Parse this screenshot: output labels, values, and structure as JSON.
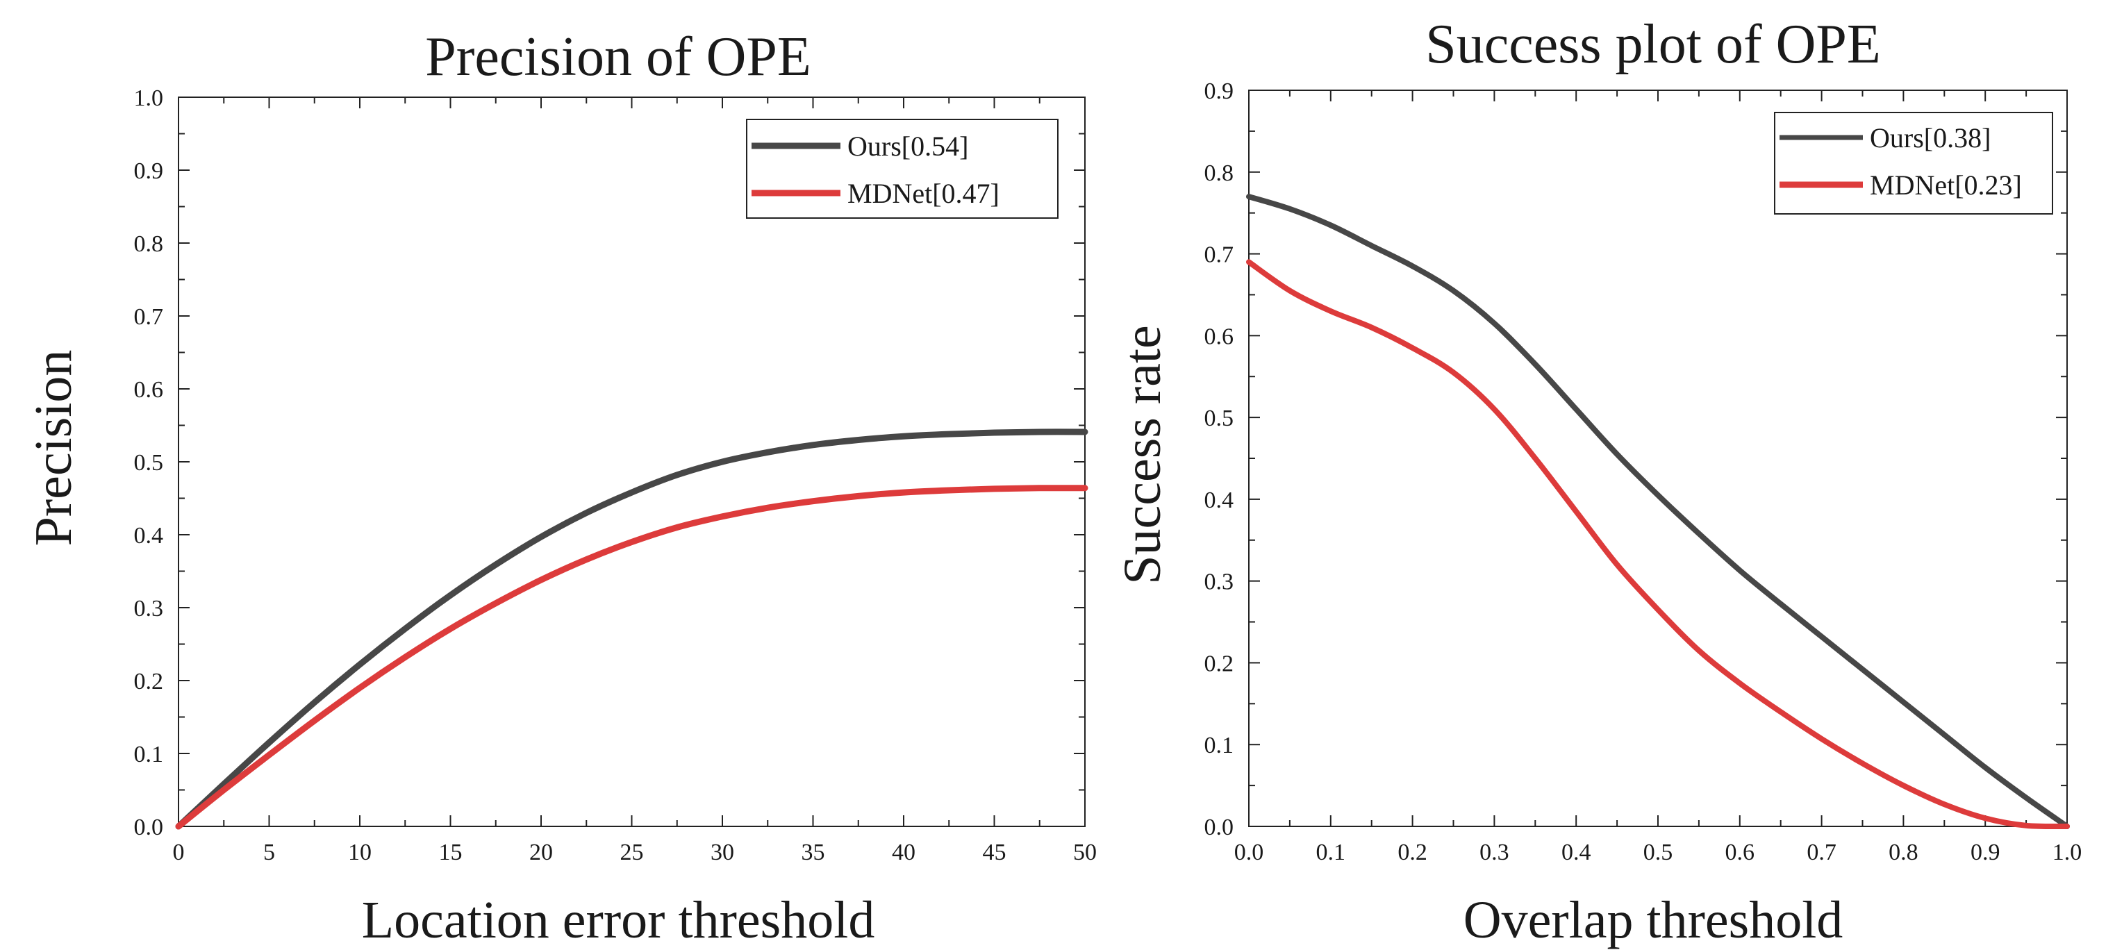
{
  "chart_data": [
    {
      "type": "line",
      "title": "Precision of OPE",
      "xlabel": "Location error threshold",
      "ylabel": "Precision",
      "xlim": [
        0,
        50
      ],
      "ylim": [
        0,
        1.0
      ],
      "xticks": [
        "0",
        "5",
        "10",
        "15",
        "20",
        "25",
        "30",
        "35",
        "40",
        "45",
        "50"
      ],
      "yticks": [
        "0.0",
        "0.1",
        "0.2",
        "0.3",
        "0.4",
        "0.5",
        "0.6",
        "0.7",
        "0.8",
        "0.9",
        "1.0"
      ],
      "legend_position": "top-right",
      "series": [
        {
          "name": "Ours[0.54]",
          "color": "#474747",
          "x": [
            0,
            2.5,
            5,
            7.5,
            10,
            12.5,
            15,
            17.5,
            20,
            22.5,
            25,
            27.5,
            30,
            32.5,
            35,
            37.5,
            40,
            42.5,
            45,
            47.5,
            50
          ],
          "y": [
            0.0,
            0.058,
            0.115,
            0.17,
            0.222,
            0.271,
            0.317,
            0.359,
            0.397,
            0.43,
            0.458,
            0.482,
            0.5,
            0.513,
            0.523,
            0.53,
            0.535,
            0.538,
            0.54,
            0.541,
            0.541
          ]
        },
        {
          "name": "MDNet[0.47]",
          "color": "#dd3b3b",
          "x": [
            0,
            2.5,
            5,
            7.5,
            10,
            12.5,
            15,
            17.5,
            20,
            22.5,
            25,
            27.5,
            30,
            32.5,
            35,
            37.5,
            40,
            42.5,
            45,
            47.5,
            50
          ],
          "y": [
            0.0,
            0.05,
            0.098,
            0.145,
            0.19,
            0.232,
            0.271,
            0.306,
            0.338,
            0.366,
            0.39,
            0.41,
            0.425,
            0.437,
            0.446,
            0.453,
            0.458,
            0.461,
            0.463,
            0.464,
            0.464
          ]
        }
      ]
    },
    {
      "type": "line",
      "title": "Success plot of OPE",
      "xlabel": "Overlap threshold",
      "ylabel": "Success rate",
      "xlim": [
        0,
        1.0
      ],
      "ylim": [
        0,
        0.9
      ],
      "xticks": [
        "0.0",
        "0.1",
        "0.2",
        "0.3",
        "0.4",
        "0.5",
        "0.6",
        "0.7",
        "0.8",
        "0.9",
        "1.0"
      ],
      "yticks": [
        "0.0",
        "0.1",
        "0.2",
        "0.3",
        "0.4",
        "0.5",
        "0.6",
        "0.7",
        "0.8",
        "0.9"
      ],
      "legend_position": "top-right",
      "series": [
        {
          "name": "Ours[0.38]",
          "color": "#474747",
          "x": [
            0.0,
            0.05,
            0.1,
            0.15,
            0.2,
            0.25,
            0.3,
            0.35,
            0.4,
            0.45,
            0.5,
            0.55,
            0.6,
            0.65,
            0.7,
            0.75,
            0.8,
            0.85,
            0.9,
            0.95,
            1.0
          ],
          "y": [
            0.77,
            0.755,
            0.735,
            0.71,
            0.685,
            0.655,
            0.615,
            0.565,
            0.51,
            0.455,
            0.405,
            0.358,
            0.313,
            0.272,
            0.232,
            0.192,
            0.152,
            0.112,
            0.072,
            0.035,
            0.0
          ]
        },
        {
          "name": "MDNet[0.23]",
          "color": "#dd3b3b",
          "x": [
            0.0,
            0.05,
            0.1,
            0.15,
            0.2,
            0.25,
            0.3,
            0.35,
            0.4,
            0.45,
            0.5,
            0.55,
            0.6,
            0.65,
            0.7,
            0.75,
            0.8,
            0.85,
            0.9,
            0.95,
            1.0
          ],
          "y": [
            0.69,
            0.655,
            0.63,
            0.61,
            0.585,
            0.555,
            0.51,
            0.45,
            0.385,
            0.32,
            0.265,
            0.215,
            0.175,
            0.14,
            0.107,
            0.077,
            0.05,
            0.027,
            0.01,
            0.001,
            0.0
          ]
        }
      ]
    }
  ]
}
